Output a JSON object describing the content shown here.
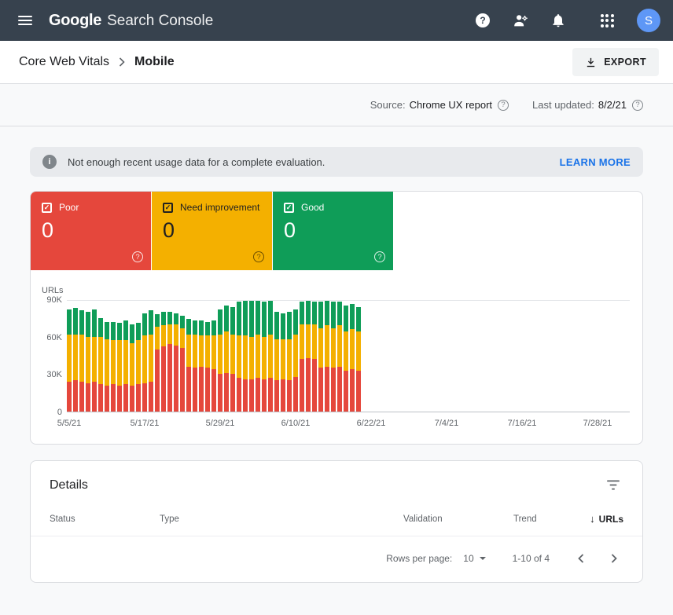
{
  "header": {
    "logo_google": "Google",
    "logo_product": "Search Console",
    "avatar_initial": "S"
  },
  "breadcrumb": {
    "parent": "Core Web Vitals",
    "current": "Mobile",
    "export_label": "EXPORT"
  },
  "meta": {
    "source_label": "Source:",
    "source_value": "Chrome UX report",
    "updated_label": "Last updated:",
    "updated_value": "8/2/21"
  },
  "banner": {
    "message": "Not enough recent usage data for a complete evaluation.",
    "action_label": "LEARN MORE"
  },
  "tiles": [
    {
      "label": "Poor",
      "value": "0"
    },
    {
      "label": "Need improvement",
      "value": "0"
    },
    {
      "label": "Good",
      "value": "0"
    }
  ],
  "colors": {
    "poor": "#e5473c",
    "need_improvement": "#f4b000",
    "good": "#0f9d58",
    "accent_blue": "#1a73e8",
    "header_bg": "#37424e"
  },
  "chart_data": {
    "type": "bar",
    "stacked": true,
    "ylabel": "URLs",
    "y_unit": "thousands",
    "ylim": [
      0,
      90
    ],
    "yticks": [
      "90K",
      "60K",
      "30K",
      "0"
    ],
    "xticks": [
      "5/5/21",
      "5/17/21",
      "5/29/21",
      "6/10/21",
      "6/22/21",
      "7/4/21",
      "7/16/21",
      "7/28/21"
    ],
    "legend": [
      "Poor",
      "Need improvement",
      "Good"
    ],
    "grid": "top gridline at 90K and baseline at 0; data ends around 6/20/21",
    "series_order_bottom_to_top": [
      "poor",
      "ni",
      "good"
    ],
    "colors": {
      "poor": "#e5473c",
      "ni": "#f4b000",
      "good": "#0f9d58"
    },
    "bars": [
      {
        "date": "5/5/21",
        "poor": 24,
        "ni": 38,
        "good": 20
      },
      {
        "date": "5/6/21",
        "poor": 25,
        "ni": 37,
        "good": 21
      },
      {
        "date": "5/7/21",
        "poor": 24,
        "ni": 38,
        "good": 19
      },
      {
        "date": "5/8/21",
        "poor": 23,
        "ni": 37,
        "good": 20
      },
      {
        "date": "5/9/21",
        "poor": 24,
        "ni": 36,
        "good": 22
      },
      {
        "date": "5/10/21",
        "poor": 22,
        "ni": 38,
        "good": 15
      },
      {
        "date": "5/11/21",
        "poor": 21,
        "ni": 37,
        "good": 14
      },
      {
        "date": "5/12/21",
        "poor": 22,
        "ni": 35,
        "good": 15
      },
      {
        "date": "5/13/21",
        "poor": 21,
        "ni": 36,
        "good": 14
      },
      {
        "date": "5/14/21",
        "poor": 22,
        "ni": 35,
        "good": 16
      },
      {
        "date": "5/15/21",
        "poor": 21,
        "ni": 34,
        "good": 15
      },
      {
        "date": "5/16/21",
        "poor": 22,
        "ni": 35,
        "good": 14
      },
      {
        "date": "5/17/21",
        "poor": 23,
        "ni": 38,
        "good": 18
      },
      {
        "date": "5/18/21",
        "poor": 24,
        "ni": 38,
        "good": 19
      },
      {
        "date": "5/19/21",
        "poor": 50,
        "ni": 18,
        "good": 10
      },
      {
        "date": "5/20/21",
        "poor": 52,
        "ni": 17,
        "good": 11
      },
      {
        "date": "5/21/21",
        "poor": 54,
        "ni": 16,
        "good": 10
      },
      {
        "date": "5/22/21",
        "poor": 53,
        "ni": 17,
        "good": 9
      },
      {
        "date": "5/23/21",
        "poor": 51,
        "ni": 16,
        "good": 10
      },
      {
        "date": "5/24/21",
        "poor": 36,
        "ni": 26,
        "good": 12
      },
      {
        "date": "5/25/21",
        "poor": 35,
        "ni": 27,
        "good": 11
      },
      {
        "date": "5/26/21",
        "poor": 36,
        "ni": 25,
        "good": 12
      },
      {
        "date": "5/27/21",
        "poor": 35,
        "ni": 26,
        "good": 11
      },
      {
        "date": "5/28/21",
        "poor": 34,
        "ni": 27,
        "good": 12
      },
      {
        "date": "5/29/21",
        "poor": 30,
        "ni": 32,
        "good": 20
      },
      {
        "date": "5/30/21",
        "poor": 31,
        "ni": 33,
        "good": 21
      },
      {
        "date": "5/31/21",
        "poor": 30,
        "ni": 32,
        "good": 22
      },
      {
        "date": "6/1/21",
        "poor": 27,
        "ni": 34,
        "good": 27
      },
      {
        "date": "6/2/21",
        "poor": 26,
        "ni": 35,
        "good": 28
      },
      {
        "date": "6/3/21",
        "poor": 26,
        "ni": 34,
        "good": 29
      },
      {
        "date": "6/4/21",
        "poor": 27,
        "ni": 35,
        "good": 27
      },
      {
        "date": "6/5/21",
        "poor": 26,
        "ni": 34,
        "good": 28
      },
      {
        "date": "6/6/21",
        "poor": 27,
        "ni": 35,
        "good": 27
      },
      {
        "date": "6/7/21",
        "poor": 25,
        "ni": 33,
        "good": 22
      },
      {
        "date": "6/8/21",
        "poor": 26,
        "ni": 32,
        "good": 21
      },
      {
        "date": "6/9/21",
        "poor": 25,
        "ni": 33,
        "good": 22
      },
      {
        "date": "6/10/21",
        "poor": 28,
        "ni": 34,
        "good": 20
      },
      {
        "date": "6/11/21",
        "poor": 42,
        "ni": 28,
        "good": 18
      },
      {
        "date": "6/12/21",
        "poor": 43,
        "ni": 27,
        "good": 19
      },
      {
        "date": "6/13/21",
        "poor": 42,
        "ni": 28,
        "good": 18
      },
      {
        "date": "6/14/21",
        "poor": 35,
        "ni": 32,
        "good": 21
      },
      {
        "date": "6/15/21",
        "poor": 36,
        "ni": 33,
        "good": 20
      },
      {
        "date": "6/16/21",
        "poor": 35,
        "ni": 32,
        "good": 21
      },
      {
        "date": "6/17/21",
        "poor": 36,
        "ni": 33,
        "good": 19
      },
      {
        "date": "6/18/21",
        "poor": 33,
        "ni": 31,
        "good": 21
      },
      {
        "date": "6/19/21",
        "poor": 34,
        "ni": 32,
        "good": 20
      },
      {
        "date": "6/20/21",
        "poor": 33,
        "ni": 31,
        "good": 20
      }
    ]
  },
  "details": {
    "title": "Details",
    "columns": [
      "Status",
      "Type",
      "Validation",
      "Trend",
      "URLs"
    ],
    "sort_column": "URLs",
    "pagination": {
      "rows_label": "Rows per page:",
      "rows_value": "10",
      "range": "1-10 of 4"
    }
  }
}
